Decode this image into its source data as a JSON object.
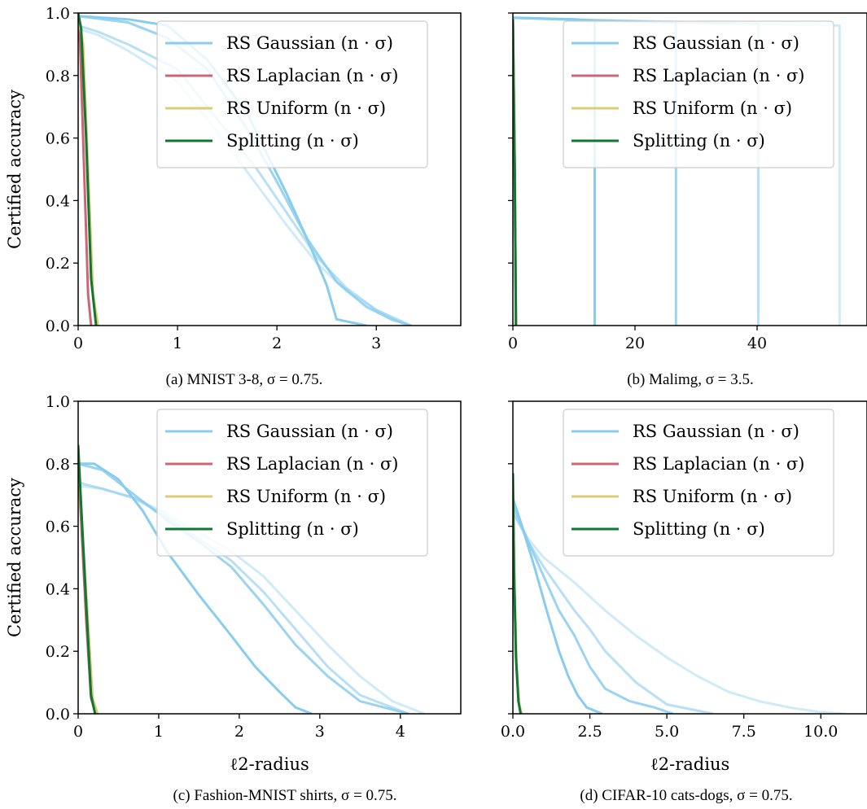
{
  "legend": {
    "entries": [
      {
        "label": "RS Gaussian (n · σ)",
        "color": "#88ccee"
      },
      {
        "label": "RS Laplacian (n · σ)",
        "color": "#cc6677"
      },
      {
        "label": "RS Uniform (n · σ)",
        "color": "#ddcc77"
      },
      {
        "label": "Splitting (n · σ)",
        "color": "#117733"
      }
    ]
  },
  "chart_data": [
    {
      "type": "line",
      "caption": "(a) MNIST 3-8, σ = 0.75.",
      "xlabel": "",
      "ylabel": "Certified accuracy",
      "xlim": [
        0,
        3.85
      ],
      "ylim": [
        0,
        1.0
      ],
      "xticks": [
        0,
        1,
        2,
        3
      ],
      "yticks": [
        0.0,
        0.2,
        0.4,
        0.6,
        0.8,
        1.0
      ],
      "legend": "top-right",
      "series": [
        {
          "color": "#88ccee",
          "opacity": 1.0,
          "x": [
            0,
            0.5,
            0.9,
            1.3,
            1.7,
            1.9,
            2.1,
            2.3,
            2.5,
            2.6,
            2.9
          ],
          "y": [
            0.99,
            0.98,
            0.96,
            0.85,
            0.68,
            0.55,
            0.42,
            0.28,
            0.13,
            0.02,
            0.0
          ]
        },
        {
          "color": "#88ccee",
          "opacity": 0.85,
          "x": [
            0,
            0.5,
            0.9,
            1.3,
            1.7,
            2.0,
            2.3,
            2.6,
            2.9,
            3.15,
            3.35
          ],
          "y": [
            0.99,
            0.97,
            0.92,
            0.82,
            0.63,
            0.46,
            0.28,
            0.14,
            0.06,
            0.02,
            0.0
          ]
        },
        {
          "color": "#88ccee",
          "opacity": 0.6,
          "x": [
            0,
            0.2,
            0.5,
            1.0,
            1.4,
            1.8,
            2.1,
            2.4,
            2.7,
            3.0,
            3.35
          ],
          "y": [
            0.96,
            0.94,
            0.9,
            0.82,
            0.66,
            0.5,
            0.36,
            0.22,
            0.12,
            0.05,
            0.0
          ]
        },
        {
          "color": "#88ccee",
          "opacity": 0.4,
          "x": [
            0,
            0.2,
            0.5,
            1.0,
            1.4,
            1.8,
            2.1,
            2.4,
            2.7,
            3.0,
            3.3
          ],
          "y": [
            0.95,
            0.93,
            0.88,
            0.78,
            0.62,
            0.45,
            0.32,
            0.2,
            0.11,
            0.05,
            0.0
          ]
        },
        {
          "color": "#cc6677",
          "opacity": 1.0,
          "x": [
            0,
            0.02,
            0.06,
            0.1,
            0.13
          ],
          "y": [
            0.98,
            0.9,
            0.5,
            0.1,
            0.0
          ]
        },
        {
          "color": "#ddcc77",
          "opacity": 1.0,
          "x": [
            0,
            0.05,
            0.1,
            0.15,
            0.2
          ],
          "y": [
            0.99,
            0.9,
            0.5,
            0.1,
            0.0
          ]
        },
        {
          "color": "#117733",
          "opacity": 1.0,
          "x": [
            0,
            0.03,
            0.08,
            0.13,
            0.18
          ],
          "y": [
            1.0,
            0.95,
            0.6,
            0.15,
            0.0
          ]
        }
      ]
    },
    {
      "type": "line",
      "caption": "(b) Malimg, σ = 3.5.",
      "xlabel": "",
      "ylabel": "",
      "xlim": [
        0,
        58
      ],
      "ylim": [
        0,
        1.0
      ],
      "xticks": [
        0,
        20,
        40
      ],
      "yticks": [
        0.0,
        0.2,
        0.4,
        0.6,
        0.8,
        1.0
      ],
      "legend": "top-right",
      "series": [
        {
          "color": "#88ccee",
          "opacity": 1.0,
          "x": [
            0,
            10,
            13.4,
            13.4
          ],
          "y": [
            0.985,
            0.98,
            0.975,
            0.0
          ]
        },
        {
          "color": "#88ccee",
          "opacity": 0.85,
          "x": [
            0,
            15,
            26.7,
            26.7
          ],
          "y": [
            0.985,
            0.975,
            0.97,
            0.0
          ]
        },
        {
          "color": "#88ccee",
          "opacity": 0.6,
          "x": [
            0,
            25,
            40.2,
            40.2
          ],
          "y": [
            0.985,
            0.97,
            0.965,
            0.0
          ]
        },
        {
          "color": "#88ccee",
          "opacity": 0.4,
          "x": [
            0,
            30,
            53.5,
            53.5
          ],
          "y": [
            0.985,
            0.97,
            0.96,
            0.0
          ]
        },
        {
          "color": "#cc6677",
          "opacity": 1.0,
          "x": [
            0,
            0.3,
            0.5
          ],
          "y": [
            0.98,
            0.5,
            0.0
          ]
        },
        {
          "color": "#ddcc77",
          "opacity": 1.0,
          "x": [
            0,
            0.3,
            0.5
          ],
          "y": [
            0.98,
            0.5,
            0.0
          ]
        },
        {
          "color": "#117733",
          "opacity": 1.0,
          "x": [
            0,
            0.3,
            0.5
          ],
          "y": [
            0.98,
            0.5,
            0.0
          ]
        }
      ]
    },
    {
      "type": "line",
      "caption": "(c) Fashion-MNIST shirts, σ = 0.75.",
      "xlabel": "ℓ2-radius",
      "ylabel": "Certified accuracy",
      "xlim": [
        0,
        4.75
      ],
      "ylim": [
        0,
        1.0
      ],
      "xticks": [
        0,
        1,
        2,
        3,
        4
      ],
      "yticks": [
        0.0,
        0.2,
        0.4,
        0.6,
        0.8,
        1.0
      ],
      "legend": "top-right",
      "series": [
        {
          "color": "#88ccee",
          "opacity": 1.0,
          "x": [
            0,
            0.2,
            0.5,
            0.8,
            1.1,
            1.5,
            1.9,
            2.2,
            2.5,
            2.7,
            2.9
          ],
          "y": [
            0.8,
            0.8,
            0.75,
            0.65,
            0.52,
            0.38,
            0.25,
            0.15,
            0.07,
            0.02,
            0.0
          ]
        },
        {
          "color": "#88ccee",
          "opacity": 0.85,
          "x": [
            0,
            0.3,
            0.7,
            1.1,
            1.5,
            1.9,
            2.3,
            2.7,
            3.1,
            3.5,
            4.1
          ],
          "y": [
            0.8,
            0.78,
            0.7,
            0.62,
            0.55,
            0.47,
            0.35,
            0.22,
            0.12,
            0.04,
            0.0
          ]
        },
        {
          "color": "#88ccee",
          "opacity": 0.6,
          "x": [
            0,
            0.3,
            0.7,
            1.1,
            1.5,
            1.9,
            2.3,
            2.7,
            3.1,
            3.5,
            4.1
          ],
          "y": [
            0.74,
            0.72,
            0.69,
            0.63,
            0.56,
            0.49,
            0.39,
            0.27,
            0.15,
            0.06,
            0.0
          ]
        },
        {
          "color": "#88ccee",
          "opacity": 0.4,
          "x": [
            0,
            0.3,
            0.7,
            1.1,
            1.5,
            1.9,
            2.3,
            2.7,
            3.1,
            3.5,
            3.9,
            4.3
          ],
          "y": [
            0.73,
            0.72,
            0.69,
            0.64,
            0.58,
            0.52,
            0.44,
            0.33,
            0.22,
            0.12,
            0.04,
            0.0
          ]
        },
        {
          "color": "#cc6677",
          "opacity": 1.0,
          "x": [
            0,
            0.04,
            0.1,
            0.16,
            0.22
          ],
          "y": [
            0.8,
            0.6,
            0.3,
            0.05,
            0.0
          ]
        },
        {
          "color": "#ddcc77",
          "opacity": 1.0,
          "x": [
            0,
            0.05,
            0.12,
            0.18,
            0.24
          ],
          "y": [
            0.82,
            0.6,
            0.3,
            0.05,
            0.0
          ]
        },
        {
          "color": "#117733",
          "opacity": 1.0,
          "x": [
            0,
            0.04,
            0.1,
            0.16,
            0.21
          ],
          "y": [
            0.86,
            0.65,
            0.35,
            0.06,
            0.0
          ]
        }
      ]
    },
    {
      "type": "line",
      "caption": "(d) CIFAR-10 cats-dogs, σ = 0.75.",
      "xlabel": "ℓ2-radius",
      "ylabel": "",
      "xlim": [
        0,
        11.5
      ],
      "ylim": [
        0,
        1.0
      ],
      "xticks": [
        0.0,
        2.5,
        5.0,
        7.5,
        10.0
      ],
      "yticks": [
        0.0,
        0.2,
        0.4,
        0.6,
        0.8,
        1.0
      ],
      "legend": "top-right",
      "series": [
        {
          "color": "#88ccee",
          "opacity": 1.0,
          "x": [
            0,
            0.3,
            0.7,
            1.1,
            1.5,
            1.8,
            2.1,
            2.4,
            2.9
          ],
          "y": [
            0.69,
            0.6,
            0.47,
            0.33,
            0.2,
            0.12,
            0.06,
            0.02,
            0.0
          ]
        },
        {
          "color": "#88ccee",
          "opacity": 0.85,
          "x": [
            0,
            0.5,
            1.0,
            1.5,
            2.0,
            2.5,
            3.0,
            3.8,
            4.6,
            5.2
          ],
          "y": [
            0.67,
            0.55,
            0.44,
            0.33,
            0.25,
            0.15,
            0.08,
            0.04,
            0.02,
            0.0
          ]
        },
        {
          "color": "#88ccee",
          "opacity": 0.6,
          "x": [
            0,
            0.5,
            1.0,
            1.5,
            2.0,
            2.5,
            3.0,
            4.0,
            5.0,
            6.5
          ],
          "y": [
            0.65,
            0.55,
            0.47,
            0.4,
            0.33,
            0.27,
            0.2,
            0.1,
            0.03,
            0.0
          ]
        },
        {
          "color": "#88ccee",
          "opacity": 0.4,
          "x": [
            0,
            0.5,
            1.0,
            2.0,
            3.0,
            4.0,
            5.0,
            6.0,
            7.0,
            8.0,
            9.0,
            10.0,
            10.8
          ],
          "y": [
            0.64,
            0.56,
            0.5,
            0.42,
            0.33,
            0.25,
            0.18,
            0.12,
            0.07,
            0.04,
            0.02,
            0.005,
            0.0
          ]
        },
        {
          "color": "#cc6677",
          "opacity": 1.0,
          "x": [
            0,
            0.05,
            0.12,
            0.2,
            0.28
          ],
          "y": [
            0.7,
            0.4,
            0.15,
            0.03,
            0.0
          ]
        },
        {
          "color": "#ddcc77",
          "opacity": 1.0,
          "x": [
            0,
            0.05,
            0.12,
            0.2,
            0.28
          ],
          "y": [
            0.72,
            0.42,
            0.16,
            0.03,
            0.0
          ]
        },
        {
          "color": "#117733",
          "opacity": 1.0,
          "x": [
            0,
            0.04,
            0.1,
            0.18,
            0.25
          ],
          "y": [
            0.77,
            0.45,
            0.18,
            0.04,
            0.0
          ]
        }
      ]
    }
  ]
}
